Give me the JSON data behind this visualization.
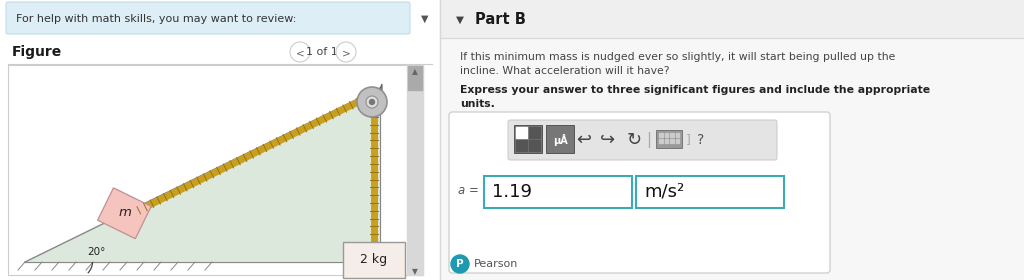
{
  "bg_left": "#ffffff",
  "bg_right": "#f7f7f7",
  "top_bar_text": "For help with math skills, you may want to review:",
  "top_bar_bg": "#ddeef6",
  "top_bar_border": "#b8d8e8",
  "figure_label": "Figure",
  "nav_text": "1 of 1",
  "part_b_label": "Part B",
  "part_b_header_bg": "#efefef",
  "question_text1": "If this minimum mass is nudged ever so slightly, it will start being pulled up the",
  "question_text2": "incline. What acceleration will it have?",
  "bold_text1": "Express your answer to three significant figures and include the appropriate",
  "bold_text2": "units.",
  "answer_label": "a =",
  "answer_value": "1.19",
  "answer_units": "m/s²",
  "angle_label": "20°",
  "mass_label_m": "m",
  "mass_label_2kg": "2 kg",
  "incline_fill": "#dde8dd",
  "block_fill": "#f5c4be",
  "block_edge": "#c09090",
  "rope_color": "#c8a020",
  "rope_dash": "#d8b844",
  "pulley_outer": "#c0c0c0",
  "pulley_inner": "#e0e0e0",
  "pulley_bracket": "#909098",
  "hanging_box_fill": "#f5ede8",
  "hanging_box_edge": "#999999",
  "scroll_bg": "#d8d8d8",
  "scroll_thumb": "#aaaaaa",
  "teal_border": "#3aacb8",
  "toolbar_bg": "#e4e4e4",
  "icon_bg": "#888888",
  "pearson_teal": "#1e9ab0",
  "divider": 440
}
